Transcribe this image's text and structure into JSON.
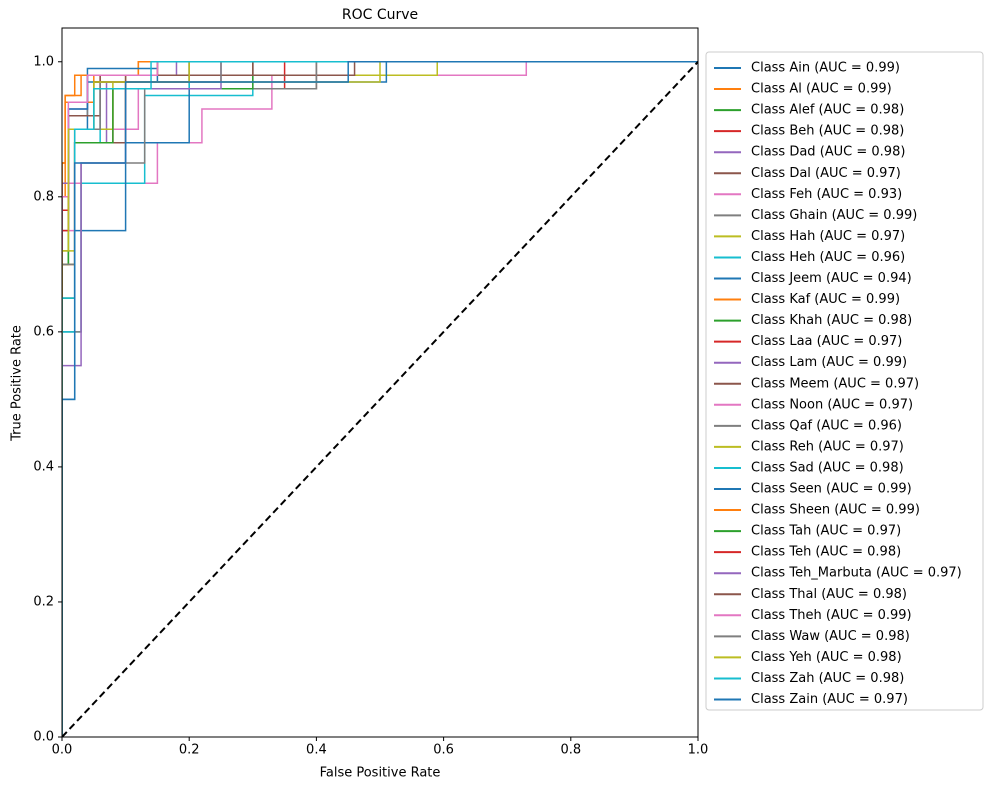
{
  "chart_data": {
    "type": "line",
    "title": "ROC Curve",
    "x_label": "False Positive Rate",
    "y_label": "True Positive Rate",
    "xlim": [
      0,
      1
    ],
    "ylim": [
      0,
      1.05
    ],
    "xticks": [
      {
        "value": 0,
        "label": "0.0"
      },
      0.2,
      0.4,
      0.6,
      0.8,
      {
        "value": 1,
        "label": "1.0"
      }
    ],
    "yticks": [
      {
        "value": 0,
        "label": "0.0"
      },
      0.2,
      0.4,
      0.6,
      0.8,
      {
        "value": 1,
        "label": "1.0"
      }
    ],
    "grid": false,
    "legend": "outside right",
    "diagonal": {
      "x": [
        0,
        1
      ],
      "values": [
        0,
        1
      ],
      "color": "#000000"
    },
    "series": [
      {
        "name": "Class Ain (AUC = 0.99)",
        "color": "#1f77b4",
        "x": [
          0,
          0,
          0.01,
          0.01,
          0.04,
          0.04,
          0.15,
          0.15,
          1
        ],
        "values": [
          0,
          0.75,
          0.75,
          0.9,
          0.9,
          0.97,
          0.97,
          1,
          1
        ]
      },
      {
        "name": "Class Al (AUC = 0.99)",
        "color": "#ff7f0e",
        "x": [
          0,
          0,
          0.005,
          0.005,
          0.02,
          0.02,
          0.12,
          0.12,
          1
        ],
        "values": [
          0,
          0.85,
          0.85,
          0.95,
          0.95,
          0.98,
          0.98,
          1,
          1
        ]
      },
      {
        "name": "Class Alef (AUC = 0.98)",
        "color": "#2ca02c",
        "x": [
          0,
          0,
          0.01,
          0.01,
          0.05,
          0.05,
          0.2,
          0.2,
          1
        ],
        "values": [
          0,
          0.7,
          0.7,
          0.9,
          0.9,
          0.97,
          0.97,
          1,
          1
        ]
      },
      {
        "name": "Class Beh (AUC = 0.98)",
        "color": "#d62728",
        "x": [
          0,
          0,
          0.01,
          0.01,
          0.06,
          0.06,
          0.3,
          0.3,
          1
        ],
        "values": [
          0,
          0.78,
          0.78,
          0.9,
          0.9,
          0.98,
          0.98,
          1,
          1
        ]
      },
      {
        "name": "Class Dad (AUC = 0.98)",
        "color": "#9467bd",
        "x": [
          0,
          0,
          0.02,
          0.02,
          0.07,
          0.07,
          0.2,
          0.2,
          1
        ],
        "values": [
          0,
          0.65,
          0.65,
          0.88,
          0.88,
          0.97,
          0.97,
          1,
          1
        ]
      },
      {
        "name": "Class Dal (AUC = 0.97)",
        "color": "#8c564b",
        "x": [
          0,
          0,
          0.02,
          0.02,
          0.1,
          0.1,
          0.4,
          0.4,
          1
        ],
        "values": [
          0,
          0.7,
          0.7,
          0.88,
          0.88,
          0.96,
          0.96,
          1,
          1
        ]
      },
      {
        "name": "Class Feh (AUC = 0.93)",
        "color": "#e377c2",
        "x": [
          0,
          0,
          0.15,
          0.15,
          0.22,
          0.22,
          0.33,
          0.33,
          0.73,
          0.73,
          1
        ],
        "values": [
          0,
          0.82,
          0.82,
          0.88,
          0.88,
          0.93,
          0.93,
          0.98,
          0.98,
          1,
          1
        ]
      },
      {
        "name": "Class Ghain (AUC = 0.99)",
        "color": "#7f7f7f",
        "x": [
          0,
          0,
          0.01,
          0.01,
          0.04,
          0.04,
          0.15,
          0.15,
          1
        ],
        "values": [
          0,
          0.8,
          0.8,
          0.92,
          0.92,
          0.98,
          0.98,
          1,
          1
        ]
      },
      {
        "name": "Class Hah (AUC = 0.97)",
        "color": "#bcbd22",
        "x": [
          0,
          0,
          0.02,
          0.02,
          0.1,
          0.1,
          0.59,
          0.59,
          1
        ],
        "values": [
          0,
          0.72,
          0.72,
          0.9,
          0.9,
          0.98,
          0.98,
          1,
          1
        ]
      },
      {
        "name": "Class Heh (AUC = 0.96)",
        "color": "#17becf",
        "x": [
          0,
          0,
          0.03,
          0.03,
          0.13,
          0.13,
          0.3,
          0.3,
          1
        ],
        "values": [
          0,
          0.6,
          0.6,
          0.82,
          0.82,
          0.95,
          0.95,
          1,
          1
        ]
      },
      {
        "name": "Class Jeem (AUC = 0.94)",
        "color": "#1f77b4",
        "x": [
          0,
          0,
          0.02,
          0.02,
          0.1,
          0.1,
          0.2,
          0.2,
          0.51,
          0.51,
          1
        ],
        "values": [
          0,
          0.5,
          0.5,
          0.75,
          0.75,
          0.88,
          0.88,
          0.97,
          0.97,
          1,
          1
        ]
      },
      {
        "name": "Class Kaf (AUC = 0.99)",
        "color": "#ff7f0e",
        "x": [
          0,
          0,
          0.005,
          0.005,
          0.05,
          0.05,
          0.12,
          0.12,
          1
        ],
        "values": [
          0,
          0.8,
          0.8,
          0.94,
          0.94,
          0.98,
          0.98,
          1,
          1
        ]
      },
      {
        "name": "Class Khah (AUC = 0.98)",
        "color": "#2ca02c",
        "x": [
          0,
          0,
          0.01,
          0.01,
          0.05,
          0.05,
          0.2,
          0.2,
          1
        ],
        "values": [
          0,
          0.7,
          0.7,
          0.9,
          0.9,
          0.97,
          0.97,
          1,
          1
        ]
      },
      {
        "name": "Class Laa (AUC = 0.97)",
        "color": "#d62728",
        "x": [
          0,
          0,
          0.02,
          0.02,
          0.08,
          0.08,
          0.35,
          0.35,
          1
        ],
        "values": [
          0,
          0.7,
          0.7,
          0.88,
          0.88,
          0.96,
          0.96,
          1,
          1
        ]
      },
      {
        "name": "Class Lam (AUC = 0.99)",
        "color": "#9467bd",
        "x": [
          0,
          0,
          0.01,
          0.01,
          0.04,
          0.04,
          0.18,
          0.18,
          1
        ],
        "values": [
          0,
          0.82,
          0.82,
          0.93,
          0.93,
          0.98,
          0.98,
          1,
          1
        ]
      },
      {
        "name": "Class Meem (AUC = 0.97)",
        "color": "#8c564b",
        "x": [
          0,
          0,
          0.02,
          0.02,
          0.1,
          0.1,
          0.46,
          0.46,
          1
        ],
        "values": [
          0,
          0.7,
          0.7,
          0.88,
          0.88,
          0.98,
          0.98,
          1,
          1
        ]
      },
      {
        "name": "Class Noon (AUC = 0.97)",
        "color": "#e377c2",
        "x": [
          0,
          0,
          0.02,
          0.02,
          0.12,
          0.12,
          0.3,
          0.3,
          1
        ],
        "values": [
          0,
          0.75,
          0.75,
          0.9,
          0.9,
          0.96,
          0.96,
          1,
          1
        ]
      },
      {
        "name": "Class Qaf (AUC = 0.96)",
        "color": "#7f7f7f",
        "x": [
          0,
          0,
          0.03,
          0.03,
          0.13,
          0.13,
          0.4,
          0.4,
          1
        ],
        "values": [
          0,
          0.6,
          0.6,
          0.85,
          0.85,
          0.96,
          0.96,
          1,
          1
        ]
      },
      {
        "name": "Class Reh (AUC = 0.97)",
        "color": "#bcbd22",
        "x": [
          0,
          0,
          0.02,
          0.02,
          0.08,
          0.08,
          0.5,
          0.5,
          1
        ],
        "values": [
          0,
          0.7,
          0.7,
          0.9,
          0.9,
          0.97,
          0.97,
          1,
          1
        ]
      },
      {
        "name": "Class Sad (AUC = 0.98)",
        "color": "#17becf",
        "x": [
          0,
          0,
          0.02,
          0.02,
          0.06,
          0.06,
          0.2,
          0.2,
          1
        ],
        "values": [
          0,
          0.6,
          0.6,
          0.88,
          0.88,
          0.96,
          0.96,
          1,
          1
        ]
      },
      {
        "name": "Class Seen (AUC = 0.99)",
        "color": "#1f77b4",
        "x": [
          0,
          0,
          0.01,
          0.01,
          0.04,
          0.04,
          0.15,
          0.15,
          1
        ],
        "values": [
          0,
          0.8,
          0.8,
          0.93,
          0.93,
          0.99,
          0.99,
          1,
          1
        ]
      },
      {
        "name": "Class Sheen (AUC = 0.99)",
        "color": "#ff7f0e",
        "x": [
          0,
          0,
          0.005,
          0.005,
          0.03,
          0.03,
          0.15,
          0.15,
          1
        ],
        "values": [
          0,
          0.85,
          0.85,
          0.95,
          0.95,
          0.98,
          0.98,
          1,
          1
        ]
      },
      {
        "name": "Class Tah (AUC = 0.97)",
        "color": "#2ca02c",
        "x": [
          0,
          0,
          0.02,
          0.02,
          0.08,
          0.08,
          0.3,
          0.3,
          1
        ],
        "values": [
          0,
          0.65,
          0.65,
          0.88,
          0.88,
          0.96,
          0.96,
          1,
          1
        ]
      },
      {
        "name": "Class Teh (AUC = 0.98)",
        "color": "#d62728",
        "x": [
          0,
          0,
          0.01,
          0.01,
          0.05,
          0.05,
          0.2,
          0.2,
          1
        ],
        "values": [
          0,
          0.75,
          0.75,
          0.9,
          0.9,
          0.97,
          0.97,
          1,
          1
        ]
      },
      {
        "name": "Class Teh_Marbuta (AUC = 0.97)",
        "color": "#9467bd",
        "x": [
          0,
          0,
          0.03,
          0.03,
          0.1,
          0.1,
          0.25,
          0.25,
          1
        ],
        "values": [
          0,
          0.55,
          0.55,
          0.85,
          0.85,
          0.96,
          0.96,
          1,
          1
        ]
      },
      {
        "name": "Class Thal (AUC = 0.98)",
        "color": "#8c564b",
        "x": [
          0,
          0,
          0.01,
          0.01,
          0.06,
          0.06,
          0.3,
          0.3,
          1
        ],
        "values": [
          0,
          0.8,
          0.8,
          0.92,
          0.92,
          0.98,
          0.98,
          1,
          1
        ]
      },
      {
        "name": "Class Theh (AUC = 0.99)",
        "color": "#e377c2",
        "x": [
          0,
          0,
          0.01,
          0.01,
          0.04,
          0.04,
          0.15,
          0.15,
          1
        ],
        "values": [
          0,
          0.8,
          0.8,
          0.94,
          0.94,
          0.98,
          0.98,
          1,
          1
        ]
      },
      {
        "name": "Class Waw (AUC = 0.98)",
        "color": "#7f7f7f",
        "x": [
          0,
          0,
          0.02,
          0.02,
          0.06,
          0.06,
          0.25,
          0.25,
          1
        ],
        "values": [
          0,
          0.7,
          0.7,
          0.9,
          0.9,
          0.97,
          0.97,
          1,
          1
        ]
      },
      {
        "name": "Class Yeh (AUC = 0.98)",
        "color": "#bcbd22",
        "x": [
          0,
          0,
          0.01,
          0.01,
          0.05,
          0.05,
          0.2,
          0.2,
          1
        ],
        "values": [
          0,
          0.72,
          0.72,
          0.9,
          0.9,
          0.97,
          0.97,
          1,
          1
        ]
      },
      {
        "name": "Class Zah (AUC = 0.98)",
        "color": "#17becf",
        "x": [
          0,
          0,
          0.02,
          0.02,
          0.05,
          0.05,
          0.14,
          0.14,
          1
        ],
        "values": [
          0,
          0.65,
          0.65,
          0.9,
          0.9,
          0.96,
          0.96,
          1,
          1
        ]
      },
      {
        "name": "Class Zain (AUC = 0.97)",
        "color": "#1f77b4",
        "x": [
          0,
          0,
          0.02,
          0.02,
          0.1,
          0.1,
          0.45,
          0.45,
          1
        ],
        "values": [
          0,
          0.5,
          0.5,
          0.85,
          0.85,
          0.97,
          0.97,
          1,
          1
        ]
      }
    ]
  }
}
